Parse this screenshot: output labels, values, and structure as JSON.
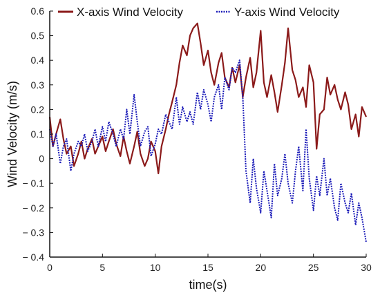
{
  "chart_data": {
    "type": "line",
    "title": "",
    "xlabel": "time(s)",
    "ylabel": "Wind Velocity (m/s)",
    "xlim": [
      0,
      30
    ],
    "ylim": [
      -0.4,
      0.6
    ],
    "x_ticks": [
      0,
      5,
      10,
      15,
      20,
      25,
      30
    ],
    "x_tick_labels": [
      "0",
      "5",
      "10",
      "15",
      "20",
      "25",
      "30"
    ],
    "y_ticks": [
      -0.4,
      -0.3,
      -0.2,
      -0.1,
      0,
      0.1,
      0.2,
      0.3,
      0.4,
      0.5,
      0.6
    ],
    "y_tick_labels": [
      "− 0.4",
      "− 0.3",
      "− 0.2",
      "− 0.1",
      "0",
      "0.1",
      "0.2",
      "0.3",
      "0.4",
      "0.5",
      "0.6"
    ],
    "grid": false,
    "legend_position": "top",
    "series": [
      {
        "name": "X-axis Wind Velocity",
        "color": "#8B1A1A",
        "style": "solid",
        "x": [
          0,
          0.3,
          0.6,
          1.0,
          1.3,
          1.6,
          2.0,
          2.3,
          2.7,
          3.0,
          3.3,
          3.6,
          4.0,
          4.3,
          4.6,
          5.0,
          5.3,
          5.6,
          6.0,
          6.3,
          6.7,
          7.0,
          7.3,
          7.6,
          8.0,
          8.3,
          8.6,
          9.0,
          9.3,
          9.6,
          10.0,
          10.3,
          10.6,
          11.0,
          11.3,
          11.6,
          12.0,
          12.3,
          12.6,
          13.0,
          13.3,
          13.6,
          14.0,
          14.3,
          14.6,
          15.0,
          15.3,
          15.6,
          16.0,
          16.3,
          16.6,
          17.0,
          17.3,
          17.6,
          18.0,
          18.3,
          18.6,
          19.0,
          19.3,
          19.6,
          20.0,
          20.3,
          20.6,
          21.0,
          21.3,
          21.6,
          22.0,
          22.3,
          22.6,
          23.0,
          23.3,
          23.6,
          24.0,
          24.3,
          24.6,
          25.0,
          25.3,
          25.6,
          26.0,
          26.3,
          26.6,
          27.0,
          27.3,
          27.6,
          28.0,
          28.3,
          28.6,
          29.0,
          29.3,
          29.6,
          30.0
        ],
        "y": [
          0.17,
          0.05,
          0.1,
          0.16,
          0.08,
          0.02,
          0.05,
          -0.03,
          0.02,
          0.07,
          0.0,
          0.04,
          0.08,
          0.02,
          0.05,
          0.09,
          0.03,
          0.07,
          0.12,
          0.06,
          0.01,
          0.09,
          0.03,
          -0.02,
          0.05,
          0.11,
          0.02,
          -0.03,
          0.0,
          0.07,
          0.03,
          -0.06,
          0.05,
          0.12,
          0.18,
          0.23,
          0.3,
          0.39,
          0.46,
          0.42,
          0.5,
          0.53,
          0.55,
          0.47,
          0.38,
          0.44,
          0.35,
          0.3,
          0.39,
          0.43,
          0.33,
          0.29,
          0.37,
          0.31,
          0.38,
          0.25,
          0.33,
          0.41,
          0.29,
          0.35,
          0.52,
          0.31,
          0.25,
          0.34,
          0.27,
          0.19,
          0.3,
          0.39,
          0.53,
          0.36,
          0.32,
          0.25,
          0.29,
          0.21,
          0.38,
          0.31,
          0.04,
          0.18,
          0.2,
          0.33,
          0.26,
          0.3,
          0.24,
          0.2,
          0.27,
          0.22,
          0.12,
          0.18,
          0.09,
          0.21,
          0.17
        ]
      },
      {
        "name": "Y-axis Wind Velocity",
        "color": "#1A1AB8",
        "style": "dotted",
        "x": [
          0,
          0.3,
          0.6,
          1.0,
          1.3,
          1.6,
          2.0,
          2.3,
          2.7,
          3.0,
          3.3,
          3.6,
          4.0,
          4.3,
          4.6,
          5.0,
          5.3,
          5.6,
          6.0,
          6.3,
          6.7,
          7.0,
          7.3,
          7.6,
          8.0,
          8.3,
          8.6,
          9.0,
          9.3,
          9.6,
          10.0,
          10.3,
          10.6,
          11.0,
          11.3,
          11.6,
          12.0,
          12.3,
          12.6,
          13.0,
          13.3,
          13.6,
          14.0,
          14.3,
          14.6,
          15.0,
          15.3,
          15.6,
          16.0,
          16.3,
          16.6,
          17.0,
          17.3,
          17.6,
          18.0,
          18.3,
          18.6,
          19.0,
          19.3,
          19.6,
          20.0,
          20.3,
          20.6,
          21.0,
          21.3,
          21.6,
          22.0,
          22.3,
          22.6,
          23.0,
          23.3,
          23.6,
          24.0,
          24.3,
          24.6,
          25.0,
          25.3,
          25.6,
          26.0,
          26.3,
          26.6,
          27.0,
          27.3,
          27.6,
          28.0,
          28.3,
          28.6,
          29.0,
          29.3,
          29.6,
          30.0
        ],
        "y": [
          0.12,
          0.05,
          0.1,
          -0.02,
          0.05,
          0.08,
          -0.05,
          0.02,
          0.07,
          0.05,
          0.1,
          0.03,
          0.07,
          0.12,
          0.05,
          0.13,
          0.07,
          0.15,
          0.1,
          0.05,
          0.12,
          0.08,
          0.2,
          0.1,
          0.26,
          0.15,
          0.05,
          0.11,
          0.13,
          0.01,
          0.06,
          0.12,
          0.1,
          0.18,
          0.15,
          0.12,
          0.25,
          0.14,
          0.21,
          0.15,
          0.19,
          0.14,
          0.27,
          0.2,
          0.28,
          0.22,
          0.15,
          0.25,
          0.3,
          0.2,
          0.33,
          0.28,
          0.37,
          0.35,
          0.4,
          0.25,
          -0.05,
          -0.18,
          0.0,
          -0.12,
          -0.22,
          -0.05,
          -0.13,
          -0.24,
          -0.02,
          -0.15,
          -0.08,
          0.02,
          -0.1,
          -0.18,
          -0.05,
          0.05,
          -0.13,
          0.12,
          -0.08,
          -0.21,
          -0.07,
          -0.15,
          0.0,
          -0.15,
          -0.08,
          -0.2,
          -0.25,
          -0.1,
          -0.18,
          -0.22,
          -0.14,
          -0.27,
          -0.18,
          -0.24,
          -0.34
        ]
      }
    ]
  }
}
